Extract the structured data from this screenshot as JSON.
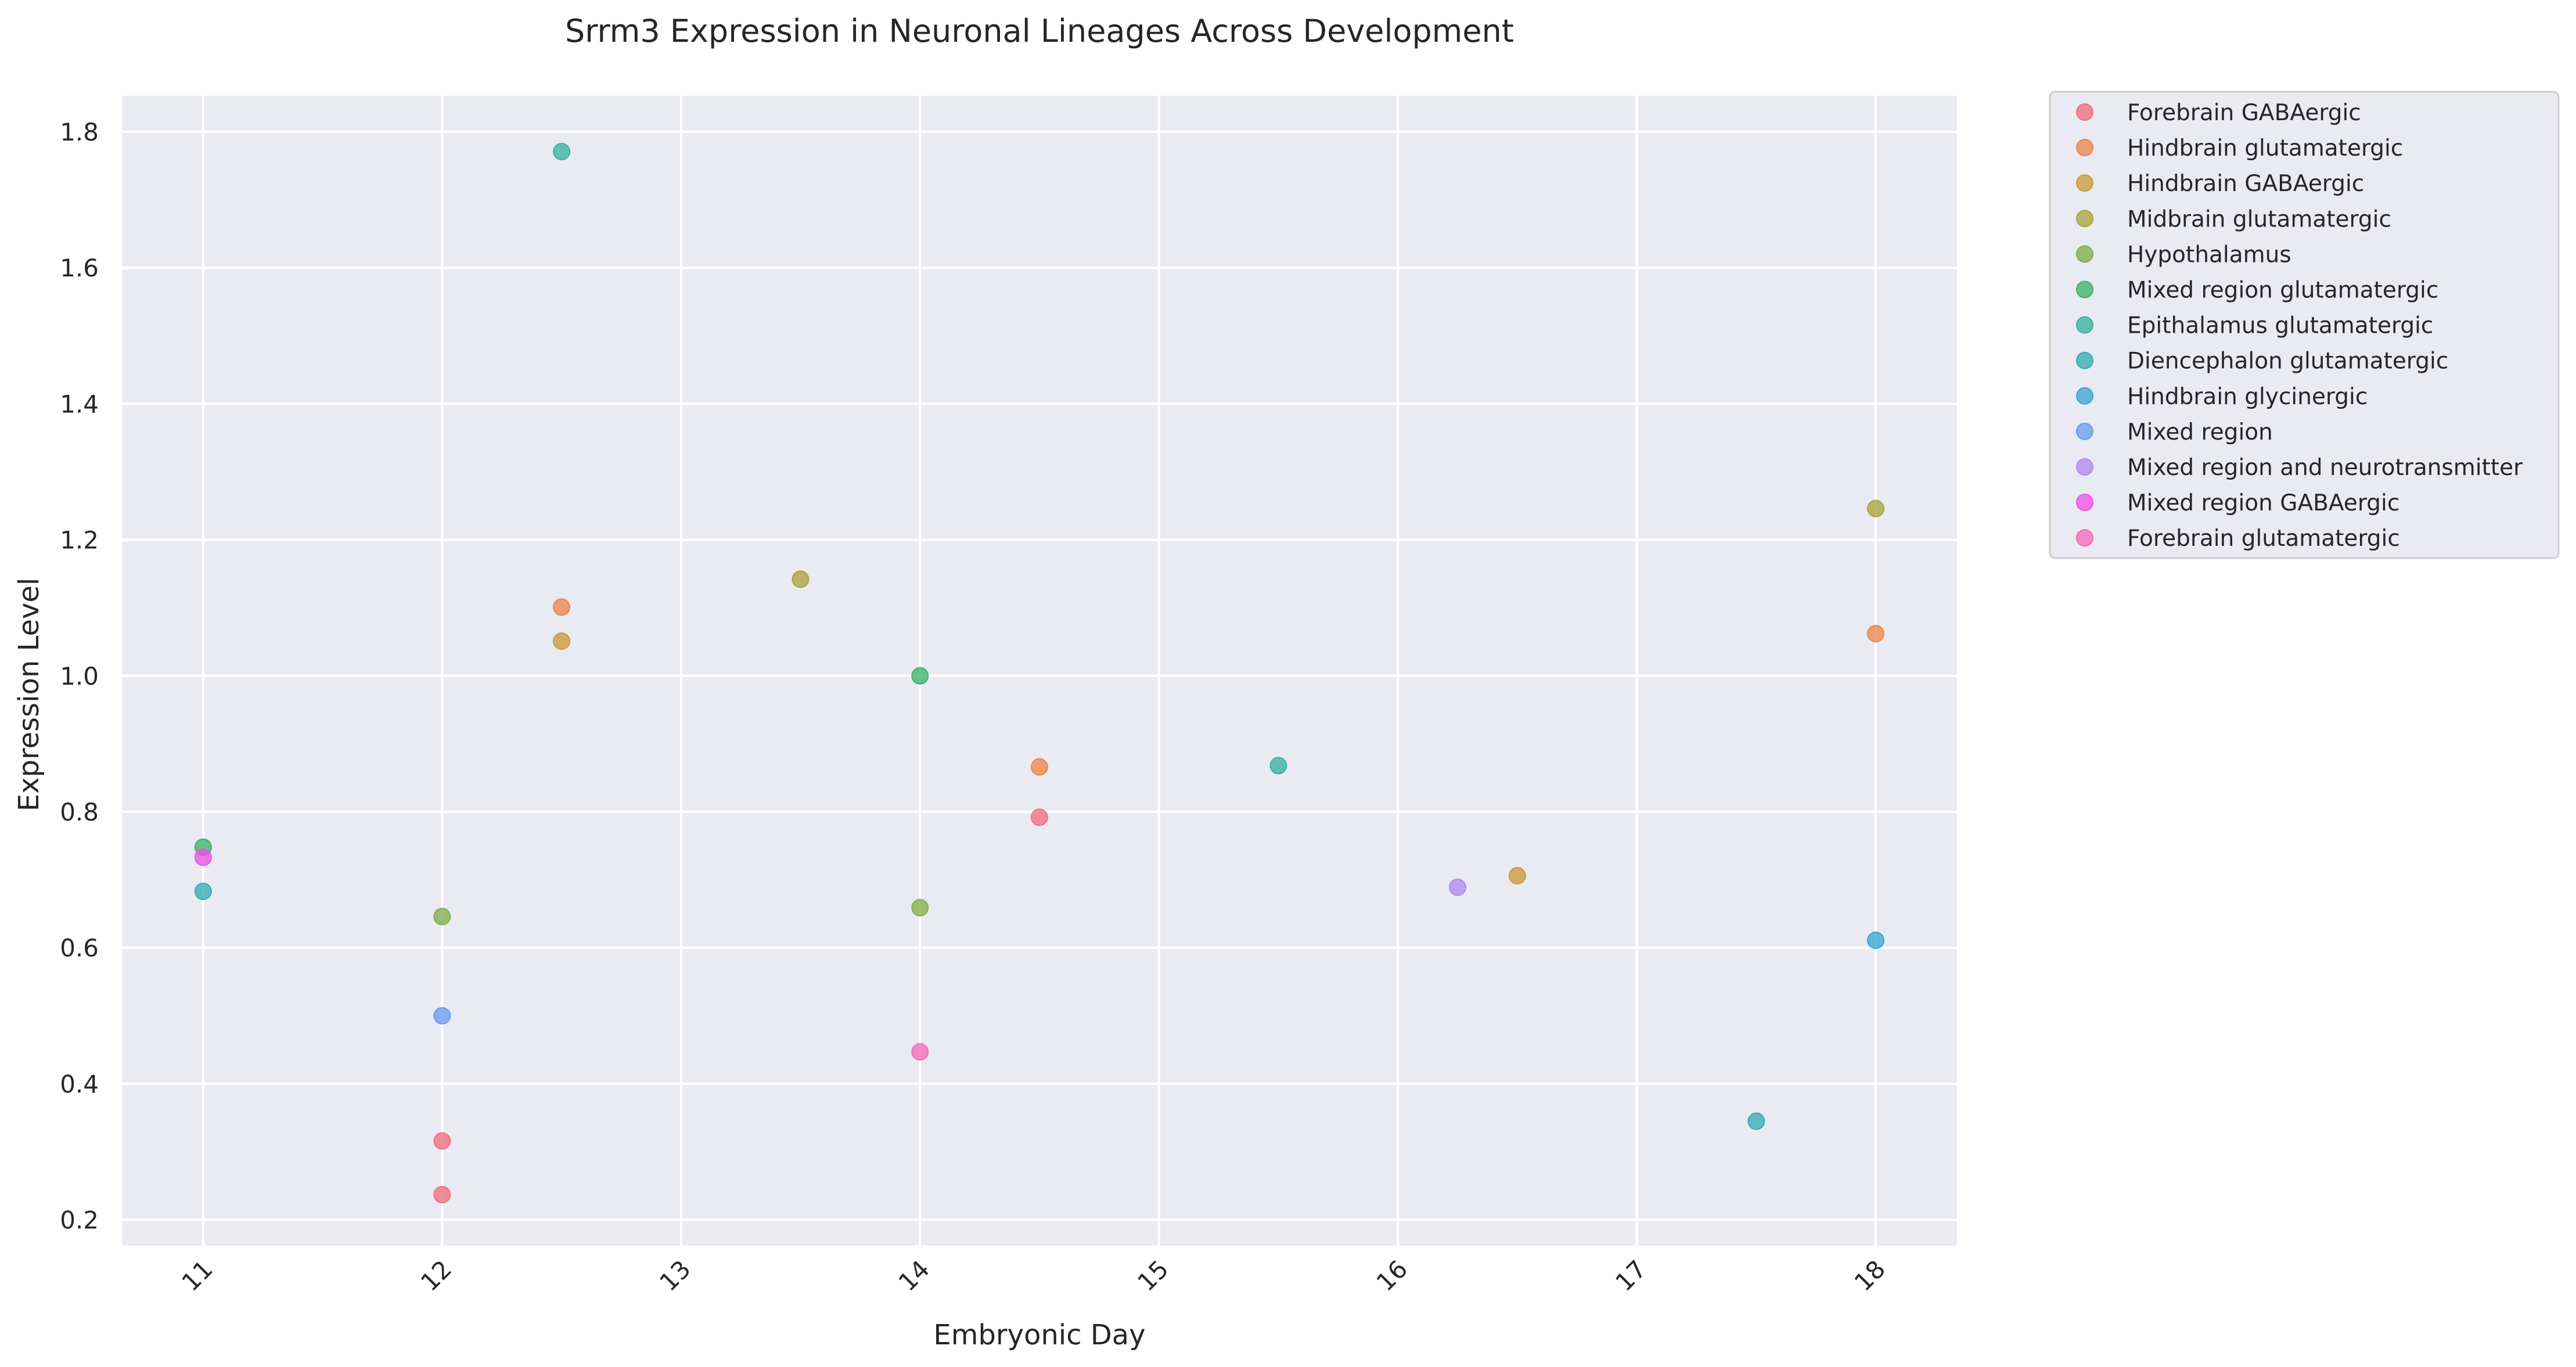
{
  "chart_data": {
    "type": "scatter",
    "title": "Srrm3 Expression in Neuronal Lineages Across Development",
    "xlabel": "Embryonic Day",
    "ylabel": "Expression Level",
    "xlim": [
      10.66,
      18.34
    ],
    "ylim": [
      0.162,
      1.853
    ],
    "xticks": [
      "11",
      "12",
      "13",
      "14",
      "15",
      "16",
      "17",
      "18"
    ],
    "yticks": [
      "0.2",
      "0.4",
      "0.6",
      "0.8",
      "1.0",
      "1.2",
      "1.4",
      "1.6",
      "1.8"
    ],
    "grid": true,
    "legend_position": "outside-upper-right",
    "series": [
      {
        "name": "Forebrain GABAergic",
        "color": "#f0707f",
        "points": [
          [
            12,
            0.316
          ],
          [
            12,
            0.237
          ],
          [
            14.5,
            0.792
          ]
        ]
      },
      {
        "name": "Hindbrain glutamatergic",
        "color": "#e9884d",
        "points": [
          [
            12.5,
            1.101
          ],
          [
            14.5,
            0.866
          ],
          [
            18,
            1.062
          ]
        ]
      },
      {
        "name": "Hindbrain GABAergic",
        "color": "#c99b3c",
        "points": [
          [
            12.5,
            1.051
          ],
          [
            16.5,
            0.706
          ]
        ]
      },
      {
        "name": "Midbrain glutamatergic",
        "color": "#a9a53f",
        "points": [
          [
            13.5,
            1.142
          ],
          [
            18,
            1.246
          ]
        ]
      },
      {
        "name": "Hypothalamus",
        "color": "#7fb04a",
        "points": [
          [
            12,
            0.646
          ],
          [
            14,
            0.659
          ]
        ]
      },
      {
        "name": "Mixed region glutamatergic",
        "color": "#3fb26d",
        "points": [
          [
            11,
            0.748
          ],
          [
            14,
            1.0
          ]
        ]
      },
      {
        "name": "Epithalamus glutamatergic",
        "color": "#37b3a0",
        "points": [
          [
            12.5,
            1.771
          ],
          [
            15.5,
            0.868
          ]
        ]
      },
      {
        "name": "Diencephalon glutamatergic",
        "color": "#36acb4",
        "points": [
          [
            11,
            0.683
          ],
          [
            17.5,
            0.345
          ]
        ]
      },
      {
        "name": "Hindbrain glycinergic",
        "color": "#3aa6d4",
        "points": [
          [
            18,
            0.611
          ]
        ]
      },
      {
        "name": "Mixed region",
        "color": "#6c9cf0",
        "points": [
          [
            12,
            0.5
          ]
        ]
      },
      {
        "name": "Mixed region and neurotransmitter",
        "color": "#b08af2",
        "points": [
          [
            16.25,
            0.689
          ]
        ]
      },
      {
        "name": "Mixed region GABAergic",
        "color": "#ee52e8",
        "points": [
          [
            11,
            0.733
          ]
        ]
      },
      {
        "name": "Forebrain glutamatergic",
        "color": "#f26bbd",
        "points": [
          [
            14,
            0.447
          ]
        ]
      }
    ]
  }
}
